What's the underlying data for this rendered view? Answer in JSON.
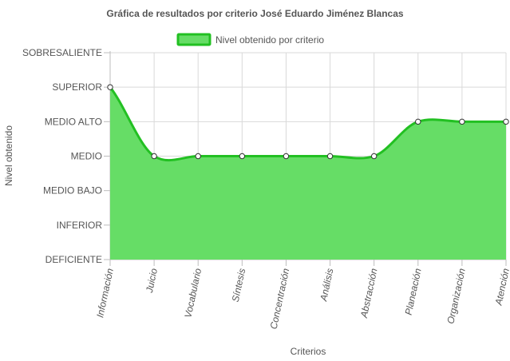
{
  "chart_data": {
    "type": "area",
    "title": "Gráfica de resultados por criterio José Eduardo Jiménez Blancas",
    "xlabel": "Criterios",
    "ylabel": "Nivel obtenido",
    "y_levels": [
      "DEFICIENTE",
      "INFERIOR",
      "MEDIO BAJO",
      "MEDIO",
      "MEDIO ALTO",
      "SUPERIOR",
      "SOBRESALIENTE"
    ],
    "ylim": [
      0,
      6
    ],
    "categories": [
      "Información",
      "Juicio",
      "Vocabulario",
      "Síntesis",
      "Concentración",
      "Análisis",
      "Abstracción",
      "Planeación",
      "Organización",
      "Atención"
    ],
    "series": [
      {
        "name": "Nivel obtenido por criterio",
        "values": [
          5,
          3,
          3,
          3,
          3,
          3,
          3,
          4,
          4,
          4
        ]
      }
    ],
    "grid": true,
    "legend_position": "top",
    "colors": {
      "fill": "#66dd66",
      "line": "#22c022",
      "point_fill": "#ffffff",
      "point_stroke": "#333333"
    }
  }
}
